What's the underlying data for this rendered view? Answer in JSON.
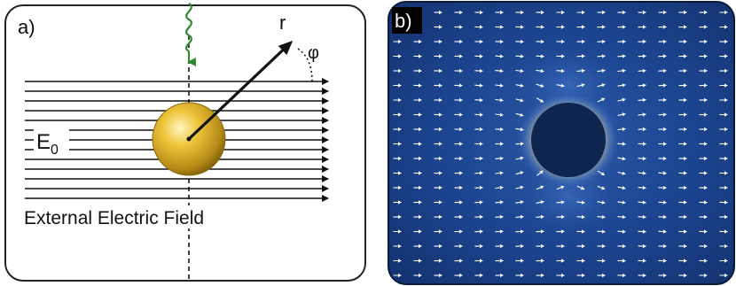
{
  "panel_a": {
    "label": "a)",
    "radius_label": "r",
    "angle_label": "φ",
    "field_symbol": "E",
    "field_subscript": "0",
    "caption": "External Electric Field",
    "colors": {
      "field_lines": "#111111",
      "wave": "#2e8b2e",
      "sphere_light": "#fff3b0",
      "sphere_mid": "#e0b423",
      "sphere_dark": "#8a6a10"
    }
  },
  "panel_b": {
    "label": "b)",
    "colors": {
      "background": "#1b3f8a",
      "background_dark": "#0f2a66",
      "particle": "#0e2550",
      "glow": "#f2df6a",
      "arrows": "#ffffff"
    }
  }
}
